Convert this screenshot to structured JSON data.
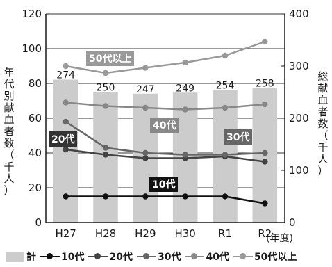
{
  "chart_data": {
    "type": "bar",
    "categories": [
      "H27",
      "H28",
      "H29",
      "H30",
      "R1",
      "R2"
    ],
    "bar_series": {
      "name": "計",
      "values": [
        274,
        250,
        247,
        249,
        254,
        258
      ],
      "color": "#cccccc"
    },
    "line_series": [
      {
        "name": "10代",
        "values": [
          15,
          15,
          15,
          15,
          15,
          11
        ],
        "color": "#111111"
      },
      {
        "name": "20代",
        "values": [
          42,
          39,
          37,
          37,
          38,
          35
        ],
        "color": "#444444"
      },
      {
        "name": "30代",
        "values": [
          58,
          43,
          40,
          39,
          39,
          40
        ],
        "color": "#666666"
      },
      {
        "name": "40代",
        "values": [
          69,
          67,
          66,
          65,
          66,
          68
        ],
        "color": "#888888"
      },
      {
        "name": "50代以上",
        "values": [
          90,
          86,
          89,
          92,
          96,
          104
        ],
        "color": "#999999"
      }
    ],
    "y_left": {
      "label": "年代別献血者数（千人）",
      "ticks": [
        0,
        20,
        40,
        60,
        80,
        100,
        120
      ],
      "lim": [
        0,
        120
      ]
    },
    "y_right": {
      "label": "総献血者数（千人）",
      "ticks": [
        0,
        100,
        200,
        300,
        400
      ],
      "lim": [
        0,
        400
      ]
    },
    "xlabel": "(年度)",
    "grid": true,
    "legend_position": "bottom"
  },
  "tags": {
    "s50": "50代以上",
    "s40": "40代",
    "s30": "30代",
    "s20": "20代",
    "s10": "10代"
  },
  "legend": {
    "total": "計",
    "s10": "10代",
    "s20": "20代",
    "s30": "30代",
    "s40": "40代",
    "s50": "50代以上"
  }
}
